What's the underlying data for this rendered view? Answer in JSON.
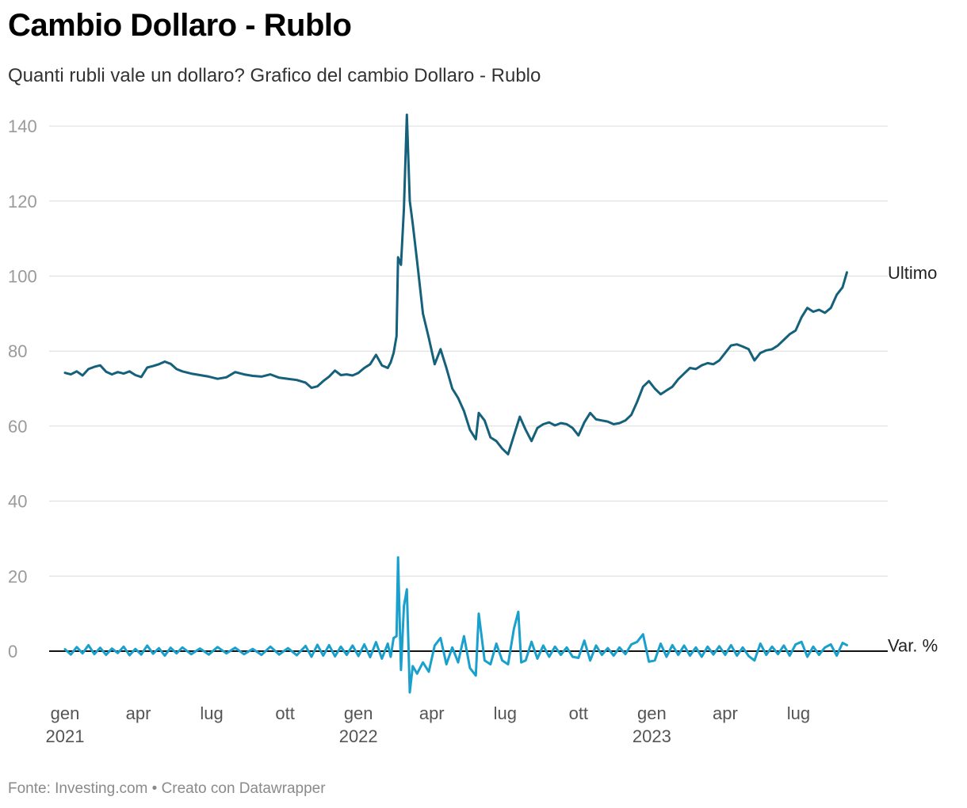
{
  "header": {
    "title": "Cambio Dollaro - Rublo",
    "subtitle": "Quanti rubli vale un dollaro? Grafico del cambio Dollaro - Rublo"
  },
  "footer": {
    "source": "Fonte: Investing.com • Creato con Datawrapper"
  },
  "chart_data": {
    "type": "line",
    "title": "Cambio Dollaro - Rublo",
    "xlabel": "",
    "ylabel": "",
    "ylim": [
      -10,
      145
    ],
    "yticks": [
      0,
      20,
      40,
      60,
      80,
      100,
      120,
      140
    ],
    "grid": true,
    "x_range": [
      2021.0,
      2023.75
    ],
    "x_ticks": [
      {
        "month": "gen",
        "year": "2021",
        "x": 2021.0
      },
      {
        "month": "apr",
        "year": "",
        "x": 2021.25
      },
      {
        "month": "lug",
        "year": "",
        "x": 2021.5
      },
      {
        "month": "ott",
        "year": "",
        "x": 2021.75
      },
      {
        "month": "gen",
        "year": "2022",
        "x": 2022.0
      },
      {
        "month": "apr",
        "year": "",
        "x": 2022.25
      },
      {
        "month": "lug",
        "year": "",
        "x": 2022.5
      },
      {
        "month": "ott",
        "year": "",
        "x": 2022.75
      },
      {
        "month": "gen",
        "year": "2023",
        "x": 2023.0
      },
      {
        "month": "apr",
        "year": "",
        "x": 2023.25
      },
      {
        "month": "lug",
        "year": "",
        "x": 2023.5
      }
    ],
    "series": [
      {
        "name": "Ultimo",
        "color": "#15607a",
        "points": [
          [
            2021.0,
            74.2
          ],
          [
            2021.02,
            73.8
          ],
          [
            2021.04,
            74.6
          ],
          [
            2021.06,
            73.5
          ],
          [
            2021.08,
            75.2
          ],
          [
            2021.1,
            75.8
          ],
          [
            2021.12,
            76.2
          ],
          [
            2021.14,
            74.5
          ],
          [
            2021.16,
            73.8
          ],
          [
            2021.18,
            74.4
          ],
          [
            2021.2,
            74.0
          ],
          [
            2021.22,
            74.6
          ],
          [
            2021.24,
            73.6
          ],
          [
            2021.26,
            73.1
          ],
          [
            2021.28,
            75.6
          ],
          [
            2021.3,
            76.0
          ],
          [
            2021.32,
            76.5
          ],
          [
            2021.34,
            77.2
          ],
          [
            2021.36,
            76.6
          ],
          [
            2021.38,
            75.2
          ],
          [
            2021.4,
            74.6
          ],
          [
            2021.43,
            74.0
          ],
          [
            2021.46,
            73.6
          ],
          [
            2021.49,
            73.2
          ],
          [
            2021.52,
            72.6
          ],
          [
            2021.55,
            73.0
          ],
          [
            2021.58,
            74.4
          ],
          [
            2021.61,
            73.8
          ],
          [
            2021.64,
            73.4
          ],
          [
            2021.67,
            73.2
          ],
          [
            2021.7,
            73.8
          ],
          [
            2021.73,
            72.9
          ],
          [
            2021.76,
            72.6
          ],
          [
            2021.79,
            72.3
          ],
          [
            2021.82,
            71.6
          ],
          [
            2021.84,
            70.2
          ],
          [
            2021.86,
            70.6
          ],
          [
            2021.88,
            72.0
          ],
          [
            2021.9,
            73.2
          ],
          [
            2021.92,
            74.8
          ],
          [
            2021.94,
            73.6
          ],
          [
            2021.96,
            73.8
          ],
          [
            2021.98,
            73.5
          ],
          [
            2022.0,
            74.2
          ],
          [
            2022.02,
            75.5
          ],
          [
            2022.04,
            76.5
          ],
          [
            2022.06,
            79.0
          ],
          [
            2022.08,
            76.2
          ],
          [
            2022.1,
            75.5
          ],
          [
            2022.11,
            77.0
          ],
          [
            2022.12,
            79.5
          ],
          [
            2022.13,
            84.0
          ],
          [
            2022.135,
            105.0
          ],
          [
            2022.145,
            103.0
          ],
          [
            2022.155,
            118.0
          ],
          [
            2022.165,
            143.0
          ],
          [
            2022.175,
            120.0
          ],
          [
            2022.185,
            114.0
          ],
          [
            2022.2,
            104.0
          ],
          [
            2022.22,
            90.0
          ],
          [
            2022.24,
            83.5
          ],
          [
            2022.26,
            76.5
          ],
          [
            2022.28,
            80.5
          ],
          [
            2022.3,
            75.5
          ],
          [
            2022.32,
            70.0
          ],
          [
            2022.34,
            67.5
          ],
          [
            2022.36,
            64.0
          ],
          [
            2022.38,
            59.0
          ],
          [
            2022.4,
            56.5
          ],
          [
            2022.41,
            63.5
          ],
          [
            2022.43,
            61.5
          ],
          [
            2022.45,
            57.0
          ],
          [
            2022.47,
            56.0
          ],
          [
            2022.49,
            54.0
          ],
          [
            2022.51,
            52.5
          ],
          [
            2022.53,
            57.5
          ],
          [
            2022.55,
            62.5
          ],
          [
            2022.57,
            59.0
          ],
          [
            2022.59,
            56.0
          ],
          [
            2022.61,
            59.5
          ],
          [
            2022.63,
            60.5
          ],
          [
            2022.65,
            61.0
          ],
          [
            2022.67,
            60.2
          ],
          [
            2022.69,
            60.8
          ],
          [
            2022.71,
            60.5
          ],
          [
            2022.73,
            59.5
          ],
          [
            2022.75,
            57.5
          ],
          [
            2022.77,
            61.0
          ],
          [
            2022.79,
            63.5
          ],
          [
            2022.81,
            61.8
          ],
          [
            2022.83,
            61.5
          ],
          [
            2022.85,
            61.2
          ],
          [
            2022.87,
            60.5
          ],
          [
            2022.89,
            60.8
          ],
          [
            2022.91,
            61.5
          ],
          [
            2022.93,
            63.0
          ],
          [
            2022.95,
            66.5
          ],
          [
            2022.97,
            70.5
          ],
          [
            2022.99,
            72.0
          ],
          [
            2023.01,
            70.0
          ],
          [
            2023.03,
            68.5
          ],
          [
            2023.05,
            69.5
          ],
          [
            2023.07,
            70.5
          ],
          [
            2023.09,
            72.5
          ],
          [
            2023.11,
            74.0
          ],
          [
            2023.13,
            75.5
          ],
          [
            2023.15,
            75.2
          ],
          [
            2023.17,
            76.2
          ],
          [
            2023.19,
            76.8
          ],
          [
            2023.21,
            76.5
          ],
          [
            2023.23,
            77.5
          ],
          [
            2023.25,
            79.5
          ],
          [
            2023.27,
            81.5
          ],
          [
            2023.29,
            81.8
          ],
          [
            2023.31,
            81.2
          ],
          [
            2023.33,
            80.5
          ],
          [
            2023.35,
            77.5
          ],
          [
            2023.37,
            79.5
          ],
          [
            2023.39,
            80.2
          ],
          [
            2023.41,
            80.5
          ],
          [
            2023.43,
            81.5
          ],
          [
            2023.45,
            83.0
          ],
          [
            2023.47,
            84.5
          ],
          [
            2023.49,
            85.5
          ],
          [
            2023.51,
            89.0
          ],
          [
            2023.53,
            91.5
          ],
          [
            2023.55,
            90.5
          ],
          [
            2023.57,
            91.0
          ],
          [
            2023.59,
            90.2
          ],
          [
            2023.61,
            91.5
          ],
          [
            2023.63,
            95.0
          ],
          [
            2023.65,
            97.0
          ],
          [
            2023.665,
            101.0
          ]
        ]
      },
      {
        "name": "Var. %",
        "color": "#1aa0cc",
        "points": [
          [
            2021.0,
            0.5
          ],
          [
            2021.02,
            -0.9
          ],
          [
            2021.04,
            1.1
          ],
          [
            2021.06,
            -0.6
          ],
          [
            2021.08,
            1.6
          ],
          [
            2021.1,
            -0.8
          ],
          [
            2021.12,
            0.9
          ],
          [
            2021.14,
            -1.0
          ],
          [
            2021.16,
            0.7
          ],
          [
            2021.18,
            -0.5
          ],
          [
            2021.2,
            1.2
          ],
          [
            2021.22,
            -1.1
          ],
          [
            2021.24,
            0.6
          ],
          [
            2021.26,
            -0.9
          ],
          [
            2021.28,
            1.5
          ],
          [
            2021.3,
            -0.7
          ],
          [
            2021.32,
            0.8
          ],
          [
            2021.34,
            -1.2
          ],
          [
            2021.36,
            0.9
          ],
          [
            2021.38,
            -0.6
          ],
          [
            2021.4,
            1.0
          ],
          [
            2021.43,
            -0.8
          ],
          [
            2021.46,
            0.7
          ],
          [
            2021.49,
            -0.9
          ],
          [
            2021.52,
            1.1
          ],
          [
            2021.55,
            -0.6
          ],
          [
            2021.58,
            0.9
          ],
          [
            2021.61,
            -0.8
          ],
          [
            2021.64,
            0.6
          ],
          [
            2021.67,
            -1.0
          ],
          [
            2021.7,
            1.2
          ],
          [
            2021.73,
            -0.9
          ],
          [
            2021.76,
            0.8
          ],
          [
            2021.79,
            -1.1
          ],
          [
            2021.82,
            1.4
          ],
          [
            2021.84,
            -1.5
          ],
          [
            2021.86,
            1.7
          ],
          [
            2021.88,
            -1.2
          ],
          [
            2021.9,
            1.6
          ],
          [
            2021.92,
            -1.4
          ],
          [
            2021.94,
            1.2
          ],
          [
            2021.96,
            -1.0
          ],
          [
            2021.98,
            1.5
          ],
          [
            2022.0,
            -1.3
          ],
          [
            2022.02,
            1.8
          ],
          [
            2022.04,
            -1.6
          ],
          [
            2022.06,
            2.4
          ],
          [
            2022.08,
            -2.0
          ],
          [
            2022.1,
            2.0
          ],
          [
            2022.11,
            -1.5
          ],
          [
            2022.12,
            3.5
          ],
          [
            2022.13,
            4.0
          ],
          [
            2022.135,
            25.0
          ],
          [
            2022.145,
            -5.0
          ],
          [
            2022.155,
            12.0
          ],
          [
            2022.165,
            16.5
          ],
          [
            2022.175,
            -11.0
          ],
          [
            2022.185,
            -4.0
          ],
          [
            2022.2,
            -6.0
          ],
          [
            2022.22,
            -3.0
          ],
          [
            2022.24,
            -5.5
          ],
          [
            2022.26,
            1.5
          ],
          [
            2022.28,
            3.5
          ],
          [
            2022.3,
            -3.5
          ],
          [
            2022.32,
            1.0
          ],
          [
            2022.34,
            -3.0
          ],
          [
            2022.36,
            4.0
          ],
          [
            2022.38,
            -4.5
          ],
          [
            2022.4,
            -6.5
          ],
          [
            2022.41,
            10.0
          ],
          [
            2022.43,
            -2.5
          ],
          [
            2022.45,
            -3.5
          ],
          [
            2022.47,
            2.0
          ],
          [
            2022.49,
            -2.5
          ],
          [
            2022.51,
            -3.5
          ],
          [
            2022.53,
            6.0
          ],
          [
            2022.545,
            10.5
          ],
          [
            2022.555,
            -3.0
          ],
          [
            2022.57,
            -2.5
          ],
          [
            2022.59,
            2.5
          ],
          [
            2022.61,
            -2.0
          ],
          [
            2022.63,
            1.5
          ],
          [
            2022.65,
            -1.5
          ],
          [
            2022.67,
            1.2
          ],
          [
            2022.69,
            -1.0
          ],
          [
            2022.71,
            1.0
          ],
          [
            2022.73,
            -1.5
          ],
          [
            2022.75,
            -1.8
          ],
          [
            2022.77,
            2.8
          ],
          [
            2022.79,
            -2.5
          ],
          [
            2022.81,
            1.5
          ],
          [
            2022.83,
            -1.0
          ],
          [
            2022.85,
            0.8
          ],
          [
            2022.87,
            -1.2
          ],
          [
            2022.89,
            1.0
          ],
          [
            2022.91,
            -0.8
          ],
          [
            2022.93,
            1.8
          ],
          [
            2022.95,
            2.5
          ],
          [
            2022.97,
            4.5
          ],
          [
            2022.99,
            -2.8
          ],
          [
            2023.01,
            -2.5
          ],
          [
            2023.03,
            2.0
          ],
          [
            2023.05,
            -1.5
          ],
          [
            2023.07,
            1.6
          ],
          [
            2023.09,
            -1.0
          ],
          [
            2023.11,
            1.5
          ],
          [
            2023.13,
            -1.2
          ],
          [
            2023.15,
            1.0
          ],
          [
            2023.17,
            -1.5
          ],
          [
            2023.19,
            1.2
          ],
          [
            2023.21,
            -0.9
          ],
          [
            2023.23,
            1.3
          ],
          [
            2023.25,
            -1.0
          ],
          [
            2023.27,
            1.6
          ],
          [
            2023.29,
            -1.2
          ],
          [
            2023.31,
            1.0
          ],
          [
            2023.33,
            -1.3
          ],
          [
            2023.35,
            -2.5
          ],
          [
            2023.37,
            2.0
          ],
          [
            2023.39,
            -1.0
          ],
          [
            2023.41,
            1.2
          ],
          [
            2023.43,
            -0.8
          ],
          [
            2023.45,
            1.5
          ],
          [
            2023.47,
            -1.2
          ],
          [
            2023.49,
            1.8
          ],
          [
            2023.51,
            2.5
          ],
          [
            2023.53,
            -1.5
          ],
          [
            2023.55,
            1.2
          ],
          [
            2023.57,
            -1.0
          ],
          [
            2023.59,
            1.0
          ],
          [
            2023.61,
            1.8
          ],
          [
            2023.63,
            -1.2
          ],
          [
            2023.65,
            2.2
          ],
          [
            2023.665,
            1.6
          ]
        ]
      }
    ]
  }
}
